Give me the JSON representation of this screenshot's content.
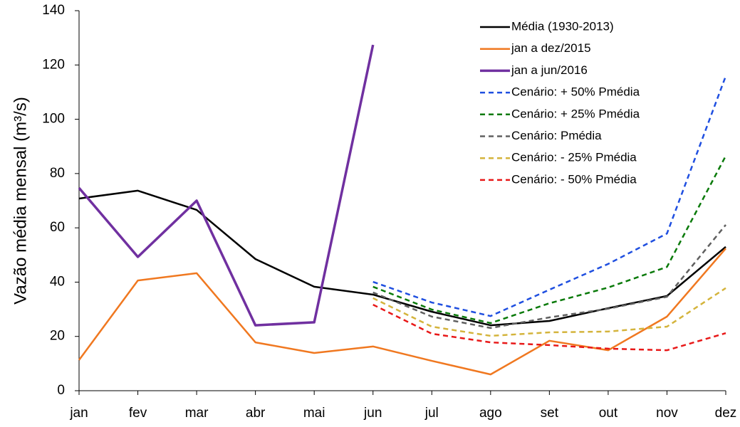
{
  "chart_data": {
    "type": "line",
    "y_label": "Vazão média mensal (m³/s)",
    "categories": [
      "jan",
      "fev",
      "mar",
      "abr",
      "mai",
      "jun",
      "jul",
      "ago",
      "set",
      "out",
      "nov",
      "dez"
    ],
    "ylim": [
      0,
      140
    ],
    "yticks": [
      0,
      20,
      40,
      60,
      80,
      100,
      120,
      140
    ],
    "legend": "top-right",
    "series": [
      {
        "name": "Média (1930-2013)",
        "color": "#000000",
        "values": [
          70.8,
          73.7,
          66.6,
          48.5,
          38.3,
          35.4,
          29.1,
          24.1,
          25.7,
          30.4,
          34.9,
          53.0
        ]
      },
      {
        "name": "jan a dez/2015",
        "color": "#f07820",
        "values": [
          11.3,
          40.6,
          43.3,
          17.8,
          13.9,
          16.3,
          11.0,
          6.0,
          18.4,
          14.9,
          27.3,
          52.4
        ]
      },
      {
        "name": "jan a jun/2016",
        "color": "#7030a0",
        "line_width": 3.5,
        "values": [
          74.7,
          49.3,
          70.0,
          24.1,
          25.2,
          127.4,
          null,
          null,
          null,
          null,
          null,
          null
        ]
      },
      {
        "name": "Cenário: + 50% Pmédia",
        "color": "#1f4fe0",
        "dashed": true,
        "values": [
          null,
          null,
          null,
          null,
          null,
          40.1,
          32.5,
          27.5,
          37.2,
          46.7,
          57.9,
          115.9
        ]
      },
      {
        "name": "Cenário: + 25% Pmédia",
        "color": "#0a7a0a",
        "dashed": true,
        "values": [
          null,
          null,
          null,
          null,
          null,
          38.3,
          29.9,
          24.9,
          32.2,
          38.0,
          45.6,
          86.5
        ]
      },
      {
        "name": "Cenário: Pmédia",
        "color": "#606060",
        "dashed": true,
        "values": [
          null,
          null,
          null,
          null,
          null,
          36.2,
          27.3,
          23.1,
          27.0,
          30.2,
          34.6,
          61.1
        ]
      },
      {
        "name": "Cenário: - 25% Pmédia",
        "color": "#d4b43c",
        "dashed": true,
        "values": [
          null,
          null,
          null,
          null,
          null,
          34.1,
          23.6,
          20.2,
          21.5,
          21.8,
          23.6,
          37.8
        ]
      },
      {
        "name": "Cenário: - 50% Pmédia",
        "color": "#e81818",
        "dashed": true,
        "values": [
          null,
          null,
          null,
          null,
          null,
          31.7,
          21.0,
          17.8,
          16.8,
          15.5,
          14.9,
          21.2
        ]
      }
    ]
  }
}
